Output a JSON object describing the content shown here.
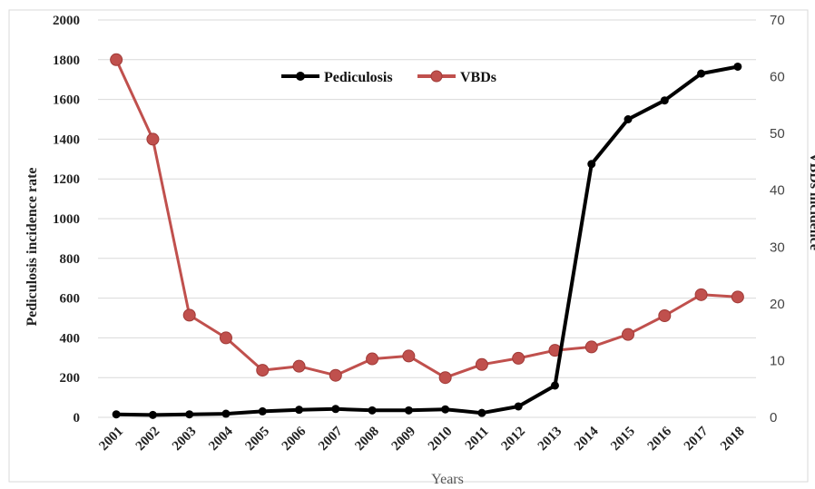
{
  "chart_data": {
    "type": "line",
    "title": "",
    "xlabel": "Years",
    "ylabel_left": "Pediculosis incidence rate",
    "ylabel_right": "VBDs incidence",
    "ylim_left": [
      0,
      2000
    ],
    "yticks_left": [
      0,
      200,
      400,
      600,
      800,
      1000,
      1200,
      1400,
      1600,
      1800,
      2000
    ],
    "ylim_right": [
      0,
      70
    ],
    "yticks_right": [
      0,
      10,
      20,
      30,
      40,
      50,
      60,
      70
    ],
    "categories": [
      "2001",
      "2002",
      "2003",
      "2004",
      "2005",
      "2006",
      "2007",
      "2008",
      "2009",
      "2010",
      "2011",
      "2012",
      "2013",
      "2014",
      "2015",
      "2016",
      "2017",
      "2018"
    ],
    "grid": true,
    "legend_position": "top-center",
    "series": [
      {
        "name": "Pediculosis",
        "axis": "left",
        "color": "#000000",
        "values": [
          15,
          12,
          15,
          18,
          30,
          38,
          42,
          35,
          35,
          40,
          22,
          55,
          160,
          1275,
          1500,
          1595,
          1730,
          1765
        ]
      },
      {
        "name": "VBDs",
        "axis": "right",
        "color": "#c0504d",
        "values": [
          63,
          49,
          18,
          14,
          8.3,
          9,
          7.4,
          10.3,
          10.8,
          7,
          9.3,
          10.4,
          11.8,
          12.4,
          14.6,
          17.9,
          21.6,
          21.2
        ]
      }
    ]
  }
}
